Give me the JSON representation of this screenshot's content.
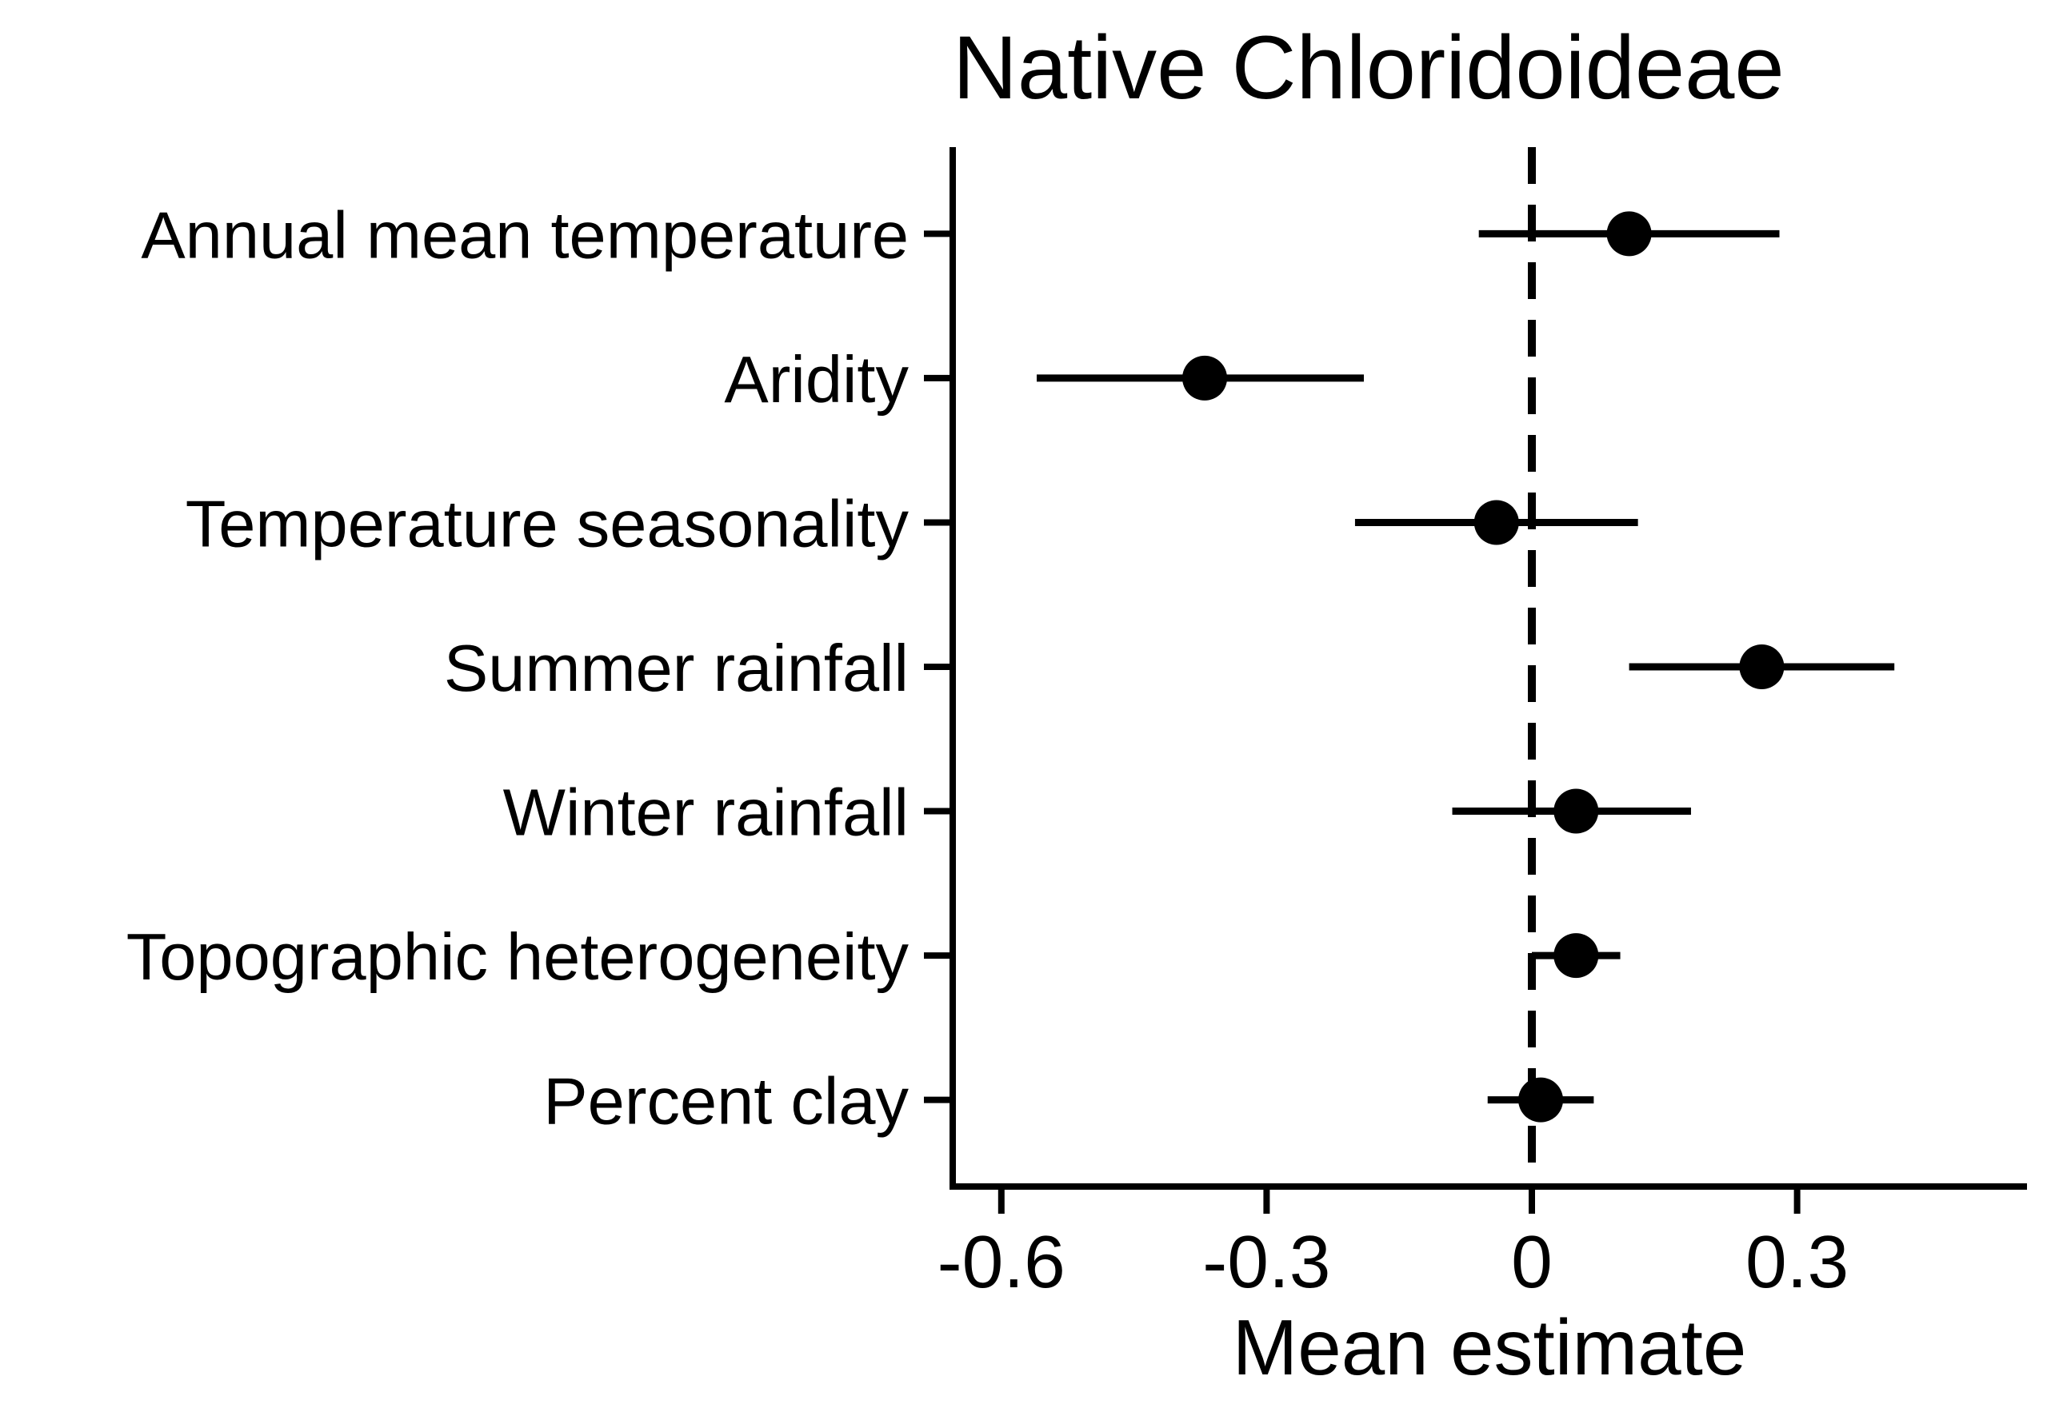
{
  "chart_data": {
    "type": "scatter",
    "title": "Native Chloridoideae",
    "xlabel": "Mean estimate",
    "categories": [
      "Annual mean temperature",
      "Aridity",
      "Temperature seasonality",
      "Summer rainfall",
      "Winter rainfall",
      "Topographic heterogeneity",
      "Percent clay"
    ],
    "estimates": [
      0.11,
      -0.37,
      -0.04,
      0.26,
      0.05,
      0.05,
      0.01
    ],
    "lower": [
      -0.06,
      -0.56,
      -0.2,
      0.11,
      -0.09,
      0.0,
      -0.05
    ],
    "upper": [
      0.28,
      -0.19,
      0.12,
      0.41,
      0.18,
      0.1,
      0.07
    ],
    "xticks": [
      -0.6,
      -0.3,
      0,
      0.3
    ],
    "xtick_labels": [
      "-0.6",
      "-0.3",
      "0",
      "0.3"
    ],
    "xlim": [
      -0.655,
      0.56
    ],
    "reference_line": {
      "x": 0,
      "dashed": true
    },
    "grid": false,
    "colors": {
      "marker": "#000000",
      "background": "#ffffff"
    }
  }
}
